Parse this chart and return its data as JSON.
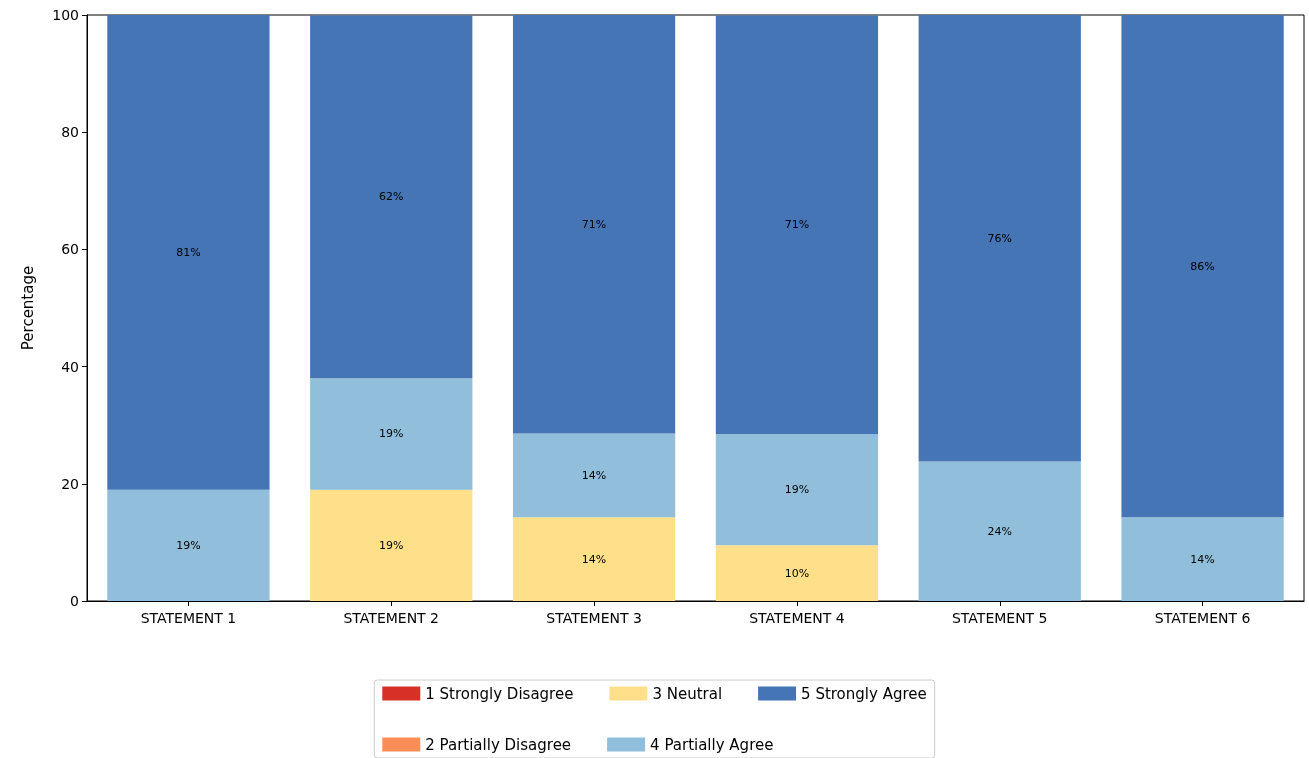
{
  "chart_data": {
    "type": "bar",
    "stacked": true,
    "ylabel": "Percentage",
    "categories": [
      "STATEMENT 1",
      "STATEMENT 2",
      "STATEMENT 3",
      "STATEMENT 4",
      "STATEMENT 5",
      "STATEMENT 6"
    ],
    "series": [
      {
        "name": "1 Strongly Disagree",
        "color": "#d73027",
        "values": [
          0,
          0,
          0,
          0,
          0,
          0
        ],
        "value_labels": [
          null,
          null,
          null,
          null,
          null,
          null
        ]
      },
      {
        "name": "2 Partially Disagree",
        "color": "#fc8d59",
        "values": [
          0,
          0,
          0,
          0,
          0,
          0
        ],
        "value_labels": [
          null,
          null,
          null,
          null,
          null,
          null
        ]
      },
      {
        "name": "3 Neutral",
        "color": "#fee08b",
        "values": [
          0,
          19.0,
          14.3,
          9.5,
          0,
          0
        ],
        "value_labels": [
          null,
          "19%",
          "14%",
          "10%",
          null,
          null
        ]
      },
      {
        "name": "4 Partially Agree",
        "color": "#91bfdb",
        "values": [
          19.0,
          19.0,
          14.3,
          19.0,
          23.8,
          14.3
        ],
        "value_labels": [
          "19%",
          "19%",
          "14%",
          "19%",
          "24%",
          "14%"
        ]
      },
      {
        "name": "5 Strongly Agree",
        "color": "#4575b4",
        "values": [
          81.0,
          61.9,
          71.4,
          71.4,
          76.2,
          85.7
        ],
        "value_labels": [
          "81%",
          "62%",
          "71%",
          "71%",
          "76%",
          "86%"
        ]
      }
    ],
    "ylim": [
      0,
      100
    ],
    "yticks": [
      0,
      20,
      40,
      60,
      80,
      100
    ],
    "grid": false,
    "legend": "bottom"
  }
}
